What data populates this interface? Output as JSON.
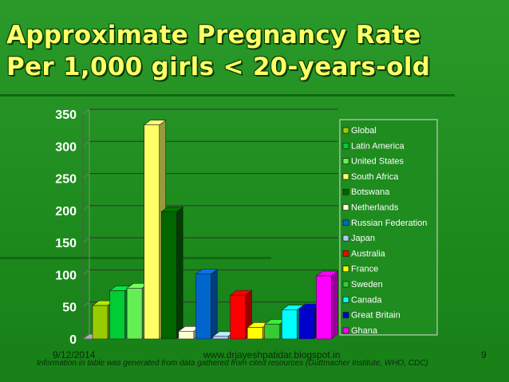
{
  "slide": {
    "title_line1": "Approximate Pregnancy Rate",
    "title_line2": "Per 1,000 girls < 20-years-old",
    "footer_date": "9/12/2014",
    "footer_url": "www.drjayeshpatidar.blogspot.in",
    "footer_page": "9",
    "source_note": "Information in table was generated from data gathered from cited resources (Guttmacher Institute, WHO, CDC)"
  },
  "chart_data": {
    "type": "bar",
    "title": "",
    "xlabel": "",
    "ylabel": "",
    "ylim": [
      0,
      350
    ],
    "yticks": [
      "0",
      "50",
      "100",
      "150",
      "200",
      "250",
      "300",
      "350"
    ],
    "legend_position": "right",
    "grid": true,
    "series": [
      {
        "name": "Global",
        "value": 52,
        "color": "#99cc00"
      },
      {
        "name": "Latin America",
        "value": 75,
        "color": "#00cc33"
      },
      {
        "name": "United States",
        "value": 79,
        "color": "#66ee55"
      },
      {
        "name": "South Africa",
        "value": 333,
        "color": "#ffff66"
      },
      {
        "name": "Botswana",
        "value": 198,
        "color": "#006600"
      },
      {
        "name": "Netherlands",
        "value": 12,
        "color": "#ffffcc"
      },
      {
        "name": "Russian Federation",
        "value": 101,
        "color": "#0066cc"
      },
      {
        "name": "Japan",
        "value": 4,
        "color": "#aaccff"
      },
      {
        "name": "Australia",
        "value": 68,
        "color": "#ff0000"
      },
      {
        "name": "France",
        "value": 18,
        "color": "#ffff00"
      },
      {
        "name": "Sweden",
        "value": 23,
        "color": "#33cc33"
      },
      {
        "name": "Canada",
        "value": 45,
        "color": "#00ffff"
      },
      {
        "name": "Great Britain",
        "value": 47,
        "color": "#0000cc"
      },
      {
        "name": "Ghana",
        "value": 98,
        "color": "#ff00ff"
      }
    ]
  }
}
